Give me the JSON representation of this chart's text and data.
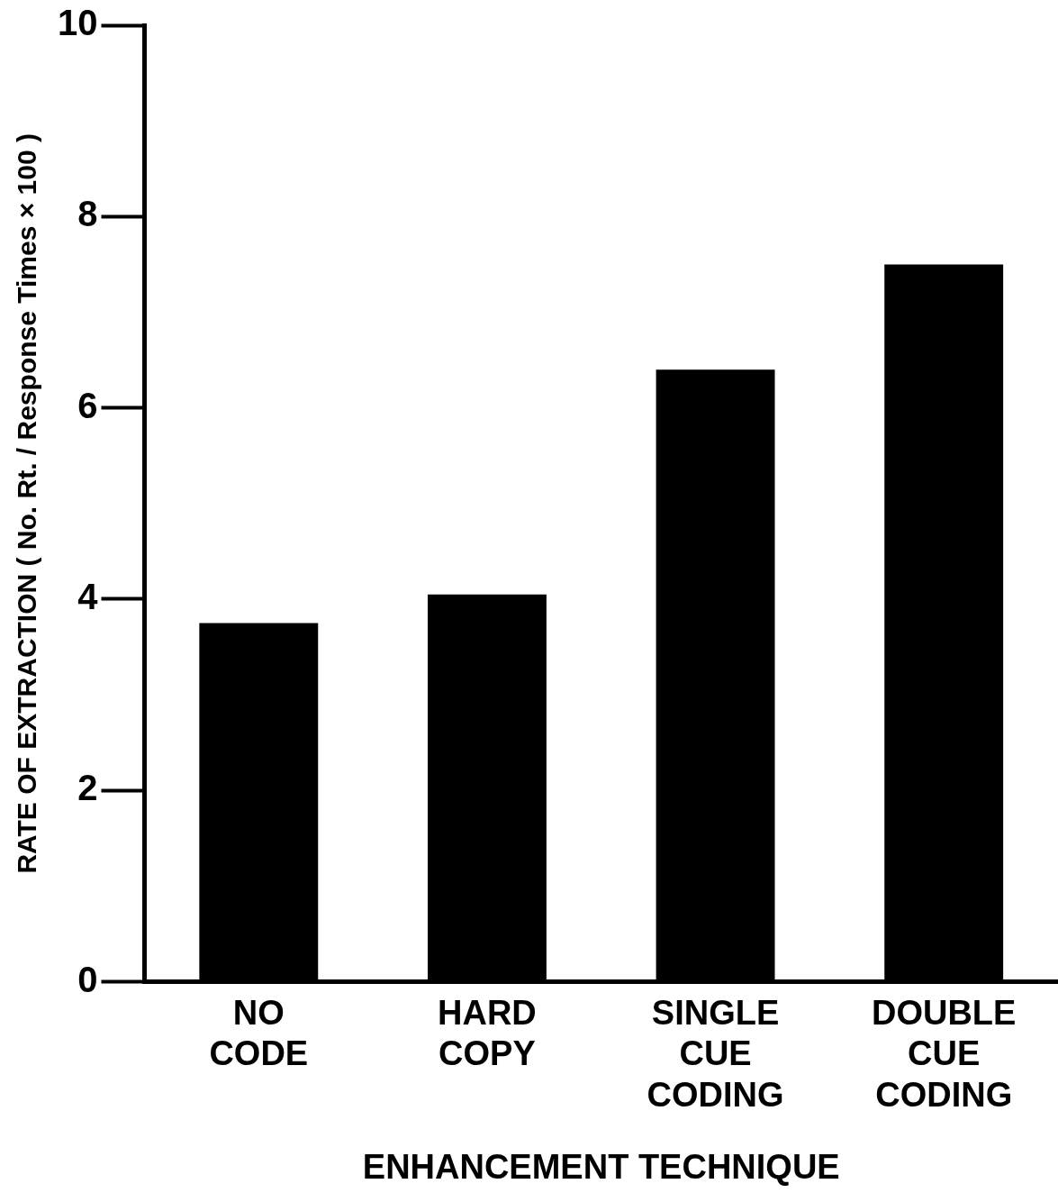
{
  "chart_data": {
    "type": "bar",
    "xlabel": "ENHANCEMENT TECHNIQUE",
    "ylabel": "RATE OF EXTRACTION ( No. Rt. / Response Times × 100 )",
    "categories": [
      "NO CODE",
      "HARD COPY",
      "SINGLE CUE CODING",
      "DOUBLE CUE CODING"
    ],
    "values": [
      3.75,
      4.05,
      6.4,
      7.5
    ],
    "color": "#000000",
    "ylim": [
      0,
      10
    ],
    "yticks": [
      0,
      2,
      4,
      6,
      8,
      10
    ],
    "grid": false,
    "legend": false
  }
}
